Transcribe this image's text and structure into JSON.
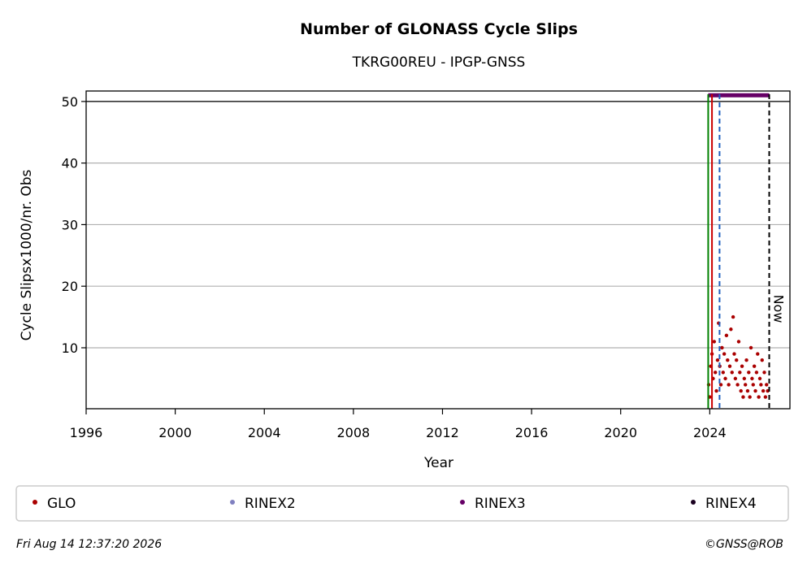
{
  "chart_data": {
    "type": "scatter",
    "title": "Number of GLONASS Cycle Slips",
    "subtitle": "TKRG00REU - IPGP-GNSS",
    "x_label": "Year",
    "y_label": "Cycle Slipsx1000/nr. Obs",
    "xlim": [
      1996,
      2027.6
    ],
    "xticks": [
      1996,
      2000,
      2004,
      2008,
      2012,
      2016,
      2020,
      2024
    ],
    "ylim": [
      0.1,
      51.7
    ],
    "yticks": [
      10,
      20,
      30,
      40,
      50
    ],
    "grid": true,
    "series": [
      {
        "name": "GLO",
        "color": "#aa0000",
        "style": "points",
        "x": [
          2023.95,
          2024.0,
          2024.05,
          2024.1,
          2024.15,
          2024.2,
          2024.25,
          2024.3,
          2024.35,
          2024.4,
          2024.45,
          2024.5,
          2024.55,
          2024.6,
          2024.65,
          2024.7,
          2024.75,
          2024.8,
          2024.85,
          2024.9,
          2024.95,
          2025.0,
          2025.05,
          2025.1,
          2025.15,
          2025.2,
          2025.25,
          2025.3,
          2025.35,
          2025.4,
          2025.45,
          2025.5,
          2025.55,
          2025.6,
          2025.65,
          2025.7,
          2025.75,
          2025.8,
          2025.85,
          2025.9,
          2025.95,
          2026.0,
          2026.05,
          2026.1,
          2026.15,
          2026.2,
          2026.25,
          2026.3,
          2026.35,
          2026.4,
          2026.45,
          2026.5,
          2026.55,
          2026.6
        ],
        "values": [
          4,
          2,
          7,
          9,
          5,
          11,
          6,
          3,
          8,
          14,
          7,
          4,
          10,
          6,
          9,
          5,
          12,
          8,
          4,
          7,
          13,
          6,
          15,
          9,
          5,
          8,
          4,
          11,
          6,
          3,
          7,
          2,
          5,
          4,
          8,
          3,
          6,
          2,
          10,
          5,
          4,
          7,
          3,
          6,
          9,
          2,
          5,
          4,
          8,
          3,
          6,
          2,
          4,
          3
        ]
      },
      {
        "name": "RINEX2",
        "color": "#8080c0",
        "style": "line",
        "x": [],
        "values": []
      },
      {
        "name": "RINEX3",
        "color": "#660066",
        "style": "line",
        "x": [
          2023.93,
          2024.5,
          2025.0,
          2025.5,
          2026.0,
          2026.67
        ],
        "values": [
          51,
          51,
          51,
          51,
          51,
          51
        ]
      },
      {
        "name": "RINEX4",
        "color": "#1a0020",
        "style": "line",
        "x": [],
        "values": []
      }
    ],
    "vlines": [
      {
        "x": 2023.93,
        "color": "#008000",
        "dashed": false
      },
      {
        "x": 2024.1,
        "color": "#cc0000",
        "dashed": false
      },
      {
        "x": 2024.44,
        "color": "#1f5fbf",
        "dashed": true
      },
      {
        "x": 2026.67,
        "color": "#000000",
        "dashed": true
      }
    ],
    "hlines": [
      50
    ],
    "annotations": [
      {
        "text": "Now",
        "x": 2026.67
      }
    ],
    "footer_left": "Fri Aug 14 12:37:20 2026",
    "footer_right": "©GNSS@ROB"
  }
}
